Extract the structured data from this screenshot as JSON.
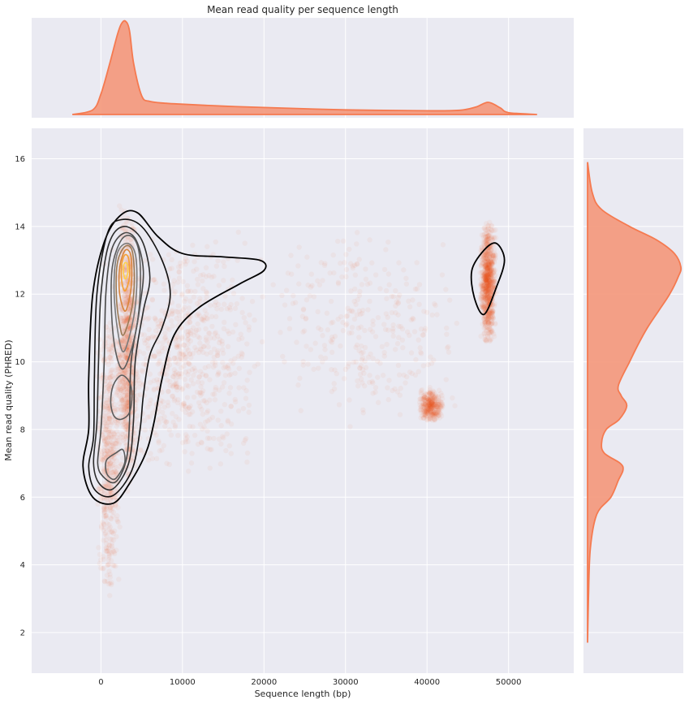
{
  "chart_data": {
    "type": "scatter",
    "title": "Mean read quality per sequence length",
    "xlabel": "Sequence length (bp)",
    "ylabel": "Mean read quality (PHRED)",
    "xlim": [
      -8500,
      58000
    ],
    "ylim": [
      0.8,
      16.9
    ],
    "xticks": [
      0,
      10000,
      20000,
      30000,
      40000,
      50000
    ],
    "yticks": [
      2,
      4,
      6,
      8,
      10,
      12,
      14,
      16
    ],
    "grid": true,
    "colors": {
      "background": "#eaeaf2",
      "grid": "#ffffff",
      "scatter": "#f0500a",
      "marginal_fill": "#f4977a",
      "marginal_line": "#f57a50",
      "contour_outer": "#000000"
    },
    "scatter_regions": [
      {
        "x": [
          -500,
          2500
        ],
        "y": [
          3.0,
          11.5
        ],
        "weight": 0.6
      },
      {
        "x": [
          2000,
          4500
        ],
        "y": [
          6.0,
          14.8
        ],
        "weight": 1.0
      },
      {
        "x": [
          0,
          20000
        ],
        "y": [
          6.5,
          14.0
        ],
        "weight": 0.8
      },
      {
        "x": [
          20000,
          45000
        ],
        "y": [
          8.0,
          14.0
        ],
        "weight": 0.35
      },
      {
        "x": [
          46500,
          48500
        ],
        "y": [
          10.5,
          14.2
        ],
        "weight": 1.0
      },
      {
        "x": [
          39000,
          42000
        ],
        "y": [
          8.2,
          9.2
        ],
        "weight": 0.4
      }
    ],
    "marginal_x": {
      "x": [
        -3500,
        -1000,
        0,
        1000,
        2000,
        2500,
        3000,
        3500,
        4000,
        5000,
        6000,
        8000,
        10000,
        15000,
        20000,
        30000,
        40000,
        44000,
        46000,
        47500,
        49000,
        50000,
        53500
      ],
      "density": [
        0.0,
        0.05,
        0.22,
        0.52,
        0.85,
        0.97,
        1.0,
        0.9,
        0.55,
        0.2,
        0.14,
        0.12,
        0.11,
        0.09,
        0.075,
        0.05,
        0.04,
        0.045,
        0.08,
        0.13,
        0.07,
        0.02,
        0.0
      ]
    },
    "marginal_y": {
      "y": [
        1.7,
        3.0,
        4.5,
        5.5,
        6.0,
        6.5,
        6.8,
        7.0,
        7.3,
        7.6,
        8.0,
        8.3,
        8.7,
        9.0,
        9.3,
        10.0,
        10.5,
        11.0,
        11.5,
        12.0,
        12.5,
        12.8,
        13.2,
        13.6,
        14.0,
        14.5,
        15.0,
        15.9
      ],
      "density": [
        0.0,
        0.01,
        0.03,
        0.1,
        0.25,
        0.33,
        0.38,
        0.35,
        0.18,
        0.15,
        0.2,
        0.34,
        0.42,
        0.36,
        0.33,
        0.45,
        0.54,
        0.64,
        0.76,
        0.88,
        0.97,
        1.0,
        0.93,
        0.74,
        0.45,
        0.15,
        0.05,
        0.0
      ]
    },
    "kde_contours": [
      {
        "level": 1,
        "color": "#000000",
        "points": [
          [
            1500,
            5.82
          ],
          [
            3500,
            6.4
          ],
          [
            5500,
            7.3
          ],
          [
            6500,
            8.2
          ],
          [
            7500,
            9.5
          ],
          [
            9000,
            10.8
          ],
          [
            12000,
            11.6
          ],
          [
            17000,
            12.3
          ],
          [
            20000,
            12.7
          ],
          [
            19500,
            13.0
          ],
          [
            15000,
            13.1
          ],
          [
            10000,
            13.2
          ],
          [
            7000,
            13.7
          ],
          [
            4500,
            14.4
          ],
          [
            2500,
            14.35
          ],
          [
            500,
            13.6
          ],
          [
            -1000,
            12.0
          ],
          [
            -1500,
            9.5
          ],
          [
            -1500,
            8.0
          ],
          [
            -2200,
            6.9
          ],
          [
            -1000,
            6.0
          ]
        ]
      },
      {
        "level": 2,
        "color": "#111111",
        "points": [
          [
            1500,
            6.05
          ],
          [
            3800,
            6.8
          ],
          [
            4800,
            8.0
          ],
          [
            5200,
            9.0
          ],
          [
            6000,
            10.2
          ],
          [
            7500,
            11.0
          ],
          [
            8500,
            12.0
          ],
          [
            7500,
            13.0
          ],
          [
            5000,
            14.0
          ],
          [
            2500,
            14.2
          ],
          [
            800,
            13.8
          ],
          [
            -500,
            12.0
          ],
          [
            -800,
            9.5
          ],
          [
            -900,
            7.8
          ],
          [
            -1500,
            6.9
          ],
          [
            -700,
            6.2
          ]
        ]
      },
      {
        "level": 3,
        "color": "#2b2b2b",
        "points": [
          [
            1500,
            6.25
          ],
          [
            3400,
            7.0
          ],
          [
            4000,
            8.3
          ],
          [
            4200,
            10.0
          ],
          [
            5200,
            11.5
          ],
          [
            6000,
            12.5
          ],
          [
            5000,
            13.6
          ],
          [
            2800,
            14.0
          ],
          [
            1000,
            13.5
          ],
          [
            0,
            12.0
          ],
          [
            -300,
            10.0
          ],
          [
            -500,
            8.2
          ],
          [
            -900,
            7.0
          ],
          [
            -200,
            6.4
          ]
        ]
      },
      {
        "level": 4,
        "color": "#474747",
        "points": [
          [
            1800,
            6.45
          ],
          [
            3100,
            7.1
          ],
          [
            3500,
            8.2
          ],
          [
            3700,
            10.0
          ],
          [
            4700,
            11.5
          ],
          [
            5200,
            12.7
          ],
          [
            4300,
            13.6
          ],
          [
            2800,
            13.8
          ],
          [
            1300,
            13.3
          ],
          [
            600,
            12.0
          ],
          [
            400,
            10.0
          ],
          [
            0,
            8.0
          ],
          [
            -400,
            7.0
          ],
          [
            300,
            6.6
          ]
        ]
      },
      {
        "level": 5,
        "color": "#5c5c5c",
        "points": [
          [
            1800,
            6.55
          ],
          [
            2900,
            7.0
          ],
          [
            2700,
            7.4
          ],
          [
            1800,
            7.3
          ],
          [
            700,
            7.1
          ],
          [
            600,
            6.8
          ],
          [
            1000,
            6.6
          ]
        ]
      },
      {
        "level": 5,
        "color": "#5c5c5c",
        "points": [
          [
            2500,
            8.3
          ],
          [
            3500,
            8.5
          ],
          [
            3800,
            9.0
          ],
          [
            3500,
            9.4
          ],
          [
            2500,
            9.6
          ],
          [
            1500,
            9.3
          ],
          [
            1200,
            8.8
          ],
          [
            1600,
            8.4
          ]
        ]
      },
      {
        "level": 5,
        "color": "#5c5c5c",
        "points": [
          [
            2800,
            9.8
          ],
          [
            4200,
            10.8
          ],
          [
            4800,
            12.0
          ],
          [
            4700,
            13.2
          ],
          [
            3800,
            13.7
          ],
          [
            2500,
            13.6
          ],
          [
            1400,
            12.8
          ],
          [
            1300,
            11.5
          ],
          [
            1800,
            10.3
          ]
        ]
      },
      {
        "level": 6,
        "color": "#7a7a7a",
        "points": [
          [
            2800,
            10.3
          ],
          [
            4000,
            11.3
          ],
          [
            4400,
            12.3
          ],
          [
            4200,
            13.2
          ],
          [
            3200,
            13.5
          ],
          [
            2000,
            13.2
          ],
          [
            1600,
            12.2
          ],
          [
            2000,
            11.0
          ]
        ]
      },
      {
        "level": 7,
        "color": "#9b7a55",
        "points": [
          [
            2800,
            10.8
          ],
          [
            3800,
            11.6
          ],
          [
            4100,
            12.5
          ],
          [
            3800,
            13.3
          ],
          [
            2900,
            13.4
          ],
          [
            2000,
            12.9
          ],
          [
            1900,
            11.9
          ],
          [
            2300,
            11.1
          ]
        ]
      },
      {
        "level": 8,
        "color": "#d9853c",
        "points": [
          [
            3000,
            11.5
          ],
          [
            3700,
            12.2
          ],
          [
            3700,
            13.1
          ],
          [
            3000,
            13.3
          ],
          [
            2300,
            12.8
          ],
          [
            2300,
            12.0
          ]
        ]
      },
      {
        "level": 9,
        "color": "#f5a033",
        "points": [
          [
            3000,
            12.1
          ],
          [
            3500,
            12.5
          ],
          [
            3400,
            13.05
          ],
          [
            2900,
            13.15
          ],
          [
            2500,
            12.8
          ],
          [
            2600,
            12.3
          ]
        ]
      },
      {
        "level": 10,
        "color": "#ffd24a",
        "points": [
          [
            3000,
            12.45
          ],
          [
            3300,
            12.65
          ],
          [
            3200,
            12.9
          ],
          [
            2850,
            12.9
          ],
          [
            2750,
            12.65
          ]
        ]
      },
      {
        "level": 1,
        "color": "#000000",
        "points": [
          [
            47000,
            11.4
          ],
          [
            48500,
            12.2
          ],
          [
            49500,
            13.0
          ],
          [
            48500,
            13.5
          ],
          [
            47000,
            13.3
          ],
          [
            45500,
            12.7
          ],
          [
            45800,
            11.9
          ]
        ]
      }
    ]
  }
}
